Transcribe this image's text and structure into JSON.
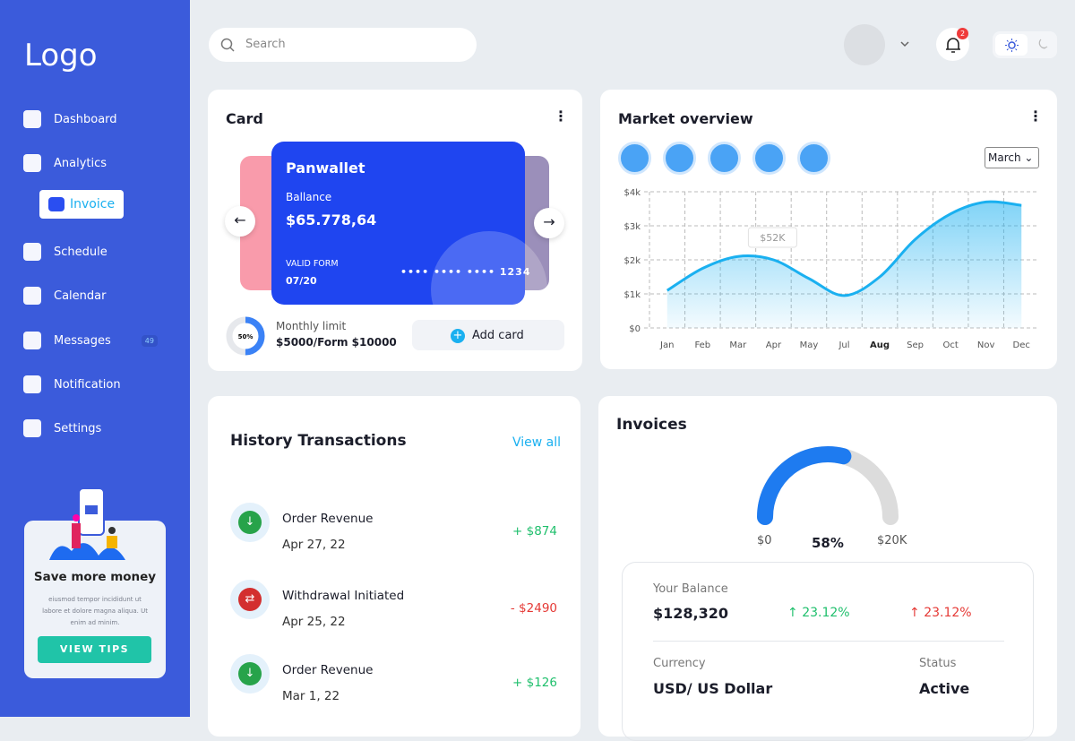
{
  "sidebar": {
    "logo": "Logo",
    "nav": [
      {
        "label": "Dashboard"
      },
      {
        "label": "Analytics"
      },
      {
        "label": "Invoice",
        "active": true
      },
      {
        "label": "Schedule"
      },
      {
        "label": "Calendar"
      },
      {
        "label": "Messages",
        "badge": "49"
      },
      {
        "label": "Notification"
      },
      {
        "label": "Settings"
      }
    ],
    "promo": {
      "title": "Save more money",
      "text": "eiusmod tempor incididunt ut labore et dolore magna aliqua. Ut enim ad minim.",
      "button": "VIEW TIPS"
    }
  },
  "topbar": {
    "search_placeholder": "Search",
    "notification_count": "2"
  },
  "card": {
    "title": "Card",
    "brand": "Panwallet",
    "balance_label": "Ballance",
    "balance": "$65.778,64",
    "valid_label": "VALID FORM",
    "valid": "07/20",
    "number": "•••• •••• •••• 1234",
    "limit": {
      "value": 50,
      "label": "50%",
      "title": "Monthly limit",
      "text": "$5000/Form $10000"
    },
    "add_button": "Add card"
  },
  "market_overview": {
    "title": "Market overview",
    "period": "March",
    "annotation": "$52K",
    "chart_data": {
      "type": "area",
      "categories": [
        "Jan",
        "Feb",
        "Mar",
        "Apr",
        "May",
        "Jul",
        "Aug",
        "Sep",
        "Oct",
        "Nov",
        "Dec"
      ],
      "values": [
        1100,
        1750,
        2100,
        2000,
        1450,
        950,
        1500,
        2600,
        3350,
        3700,
        3600
      ],
      "color": "#1ab0f0",
      "ylim": [
        0,
        4000
      ],
      "yticks": [
        {
          "value": 0,
          "label": "$0"
        },
        {
          "value": 1000,
          "label": "$1k"
        },
        {
          "value": 2000,
          "label": "$2k"
        },
        {
          "value": 3000,
          "label": "$3k"
        },
        {
          "value": 4000,
          "label": "$4k"
        }
      ],
      "grid": true
    }
  },
  "transactions": {
    "title": "History Transactions",
    "view_all": "View all",
    "rows": [
      {
        "name": "Order Revenue",
        "date": "Apr 27, 22",
        "amount": "+ $874",
        "kind": "in"
      },
      {
        "name": "Withdrawal Initiated",
        "date": "Apr 25, 22",
        "amount": "- $2490",
        "kind": "out"
      },
      {
        "name": "Order Revenue",
        "date": "Mar 1, 22",
        "amount": "+ $126",
        "kind": "in"
      }
    ]
  },
  "invoices": {
    "title": "Invoices",
    "gauge": {
      "min_label": "$0",
      "max_label": "$20K",
      "value": 58,
      "value_label": "58%"
    },
    "balance_label": "Your Balance",
    "balance": "$128,320",
    "change_up": "23.12%",
    "change_down": "23.12%",
    "currency_label": "Currency",
    "currency": "USD/ US Dollar",
    "status_label": "Status",
    "status": "Active"
  }
}
